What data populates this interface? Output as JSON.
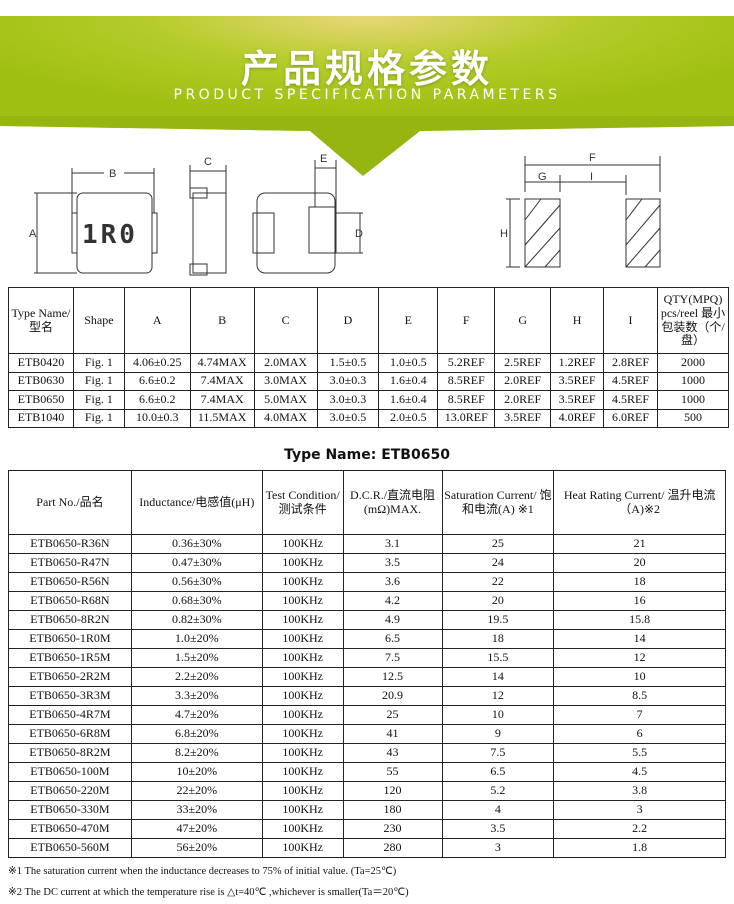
{
  "banner": {
    "title": "产品规格参数",
    "subtitle": "PRODUCT SPECIFICATION PARAMETERS",
    "color": "#a3c414"
  },
  "drawing": {
    "marking": "1R0",
    "dims": [
      "A",
      "B",
      "C",
      "D",
      "E",
      "F",
      "G",
      "H",
      "I"
    ]
  },
  "spec_table": {
    "headers": [
      "Type Name/型名",
      "Shape",
      "A",
      "B",
      "C",
      "D",
      "E",
      "F",
      "G",
      "H",
      "I",
      "QTY(MPQ) pcs/reel 最小包装数（个/盘）"
    ],
    "rows": [
      [
        "ETB0420",
        "Fig. 1",
        "4.06±0.25",
        "4.74MAX",
        "2.0MAX",
        "1.5±0.5",
        "1.0±0.5",
        "5.2REF",
        "2.5REF",
        "1.2REF",
        "2.8REF",
        "2000"
      ],
      [
        "ETB0630",
        "Fig. 1",
        "6.6±0.2",
        "7.4MAX",
        "3.0MAX",
        "3.0±0.3",
        "1.6±0.4",
        "8.5REF",
        "2.0REF",
        "3.5REF",
        "4.5REF",
        "1000"
      ],
      [
        "ETB0650",
        "Fig. 1",
        "6.6±0.2",
        "7.4MAX",
        "5.0MAX",
        "3.0±0.3",
        "1.6±0.4",
        "8.5REF",
        "2.0REF",
        "3.5REF",
        "4.5REF",
        "1000"
      ],
      [
        "ETB1040",
        "Fig. 1",
        "10.0±0.3",
        "11.5MAX",
        "4.0MAX",
        "3.0±0.5",
        "2.0±0.5",
        "13.0REF",
        "3.5REF",
        "4.0REF",
        "6.0REF",
        "500"
      ]
    ]
  },
  "type_name": "Type Name: ETB0650",
  "part_table": {
    "headers": [
      "Part No./品名",
      "Inductance/电感值(μH)",
      "Test Condition/ 测试条件",
      "D.C.R./直流电阻 (mΩ)MAX.",
      "Saturation Current/ 饱和电流(A) ※1",
      "Heat Rating Current/ 温升电流（A)※2"
    ],
    "rows": [
      [
        "ETB0650-R36N",
        "0.36±30%",
        "100KHz",
        "3.1",
        "25",
        "21"
      ],
      [
        "ETB0650-R47N",
        "0.47±30%",
        "100KHz",
        "3.5",
        "24",
        "20"
      ],
      [
        "ETB0650-R56N",
        "0.56±30%",
        "100KHz",
        "3.6",
        "22",
        "18"
      ],
      [
        "ETB0650-R68N",
        "0.68±30%",
        "100KHz",
        "4.2",
        "20",
        "16"
      ],
      [
        "ETB0650-8R2N",
        "0.82±30%",
        "100KHz",
        "4.9",
        "19.5",
        "15.8"
      ],
      [
        "ETB0650-1R0M",
        "1.0±20%",
        "100KHz",
        "6.5",
        "18",
        "14"
      ],
      [
        "ETB0650-1R5M",
        "1.5±20%",
        "100KHz",
        "7.5",
        "15.5",
        "12"
      ],
      [
        "ETB0650-2R2M",
        "2.2±20%",
        "100KHz",
        "12.5",
        "14",
        "10"
      ],
      [
        "ETB0650-3R3M",
        "3.3±20%",
        "100KHz",
        "20.9",
        "12",
        "8.5"
      ],
      [
        "ETB0650-4R7M",
        "4.7±20%",
        "100KHz",
        "25",
        "10",
        "7"
      ],
      [
        "ETB0650-6R8M",
        "6.8±20%",
        "100KHz",
        "41",
        "9",
        "6"
      ],
      [
        "ETB0650-8R2M",
        "8.2±20%",
        "100KHz",
        "43",
        "7.5",
        "5.5"
      ],
      [
        "ETB0650-100M",
        "10±20%",
        "100KHz",
        "55",
        "6.5",
        "4.5"
      ],
      [
        "ETB0650-220M",
        "22±20%",
        "100KHz",
        "120",
        "5.2",
        "3.8"
      ],
      [
        "ETB0650-330M",
        "33±20%",
        "100KHz",
        "180",
        "4",
        "3"
      ],
      [
        "ETB0650-470M",
        "47±20%",
        "100KHz",
        "230",
        "3.5",
        "2.2"
      ],
      [
        "ETB0650-560M",
        "56±20%",
        "100KHz",
        "280",
        "3",
        "1.8"
      ]
    ]
  },
  "footnotes": [
    "※1 The saturation current when the inductance decreases to 75% of initial value. (Ta=25℃)",
    "※2 The DC current at which the temperature rise is △t=40℃ ,whichever is smaller(Ta＝20℃)"
  ]
}
